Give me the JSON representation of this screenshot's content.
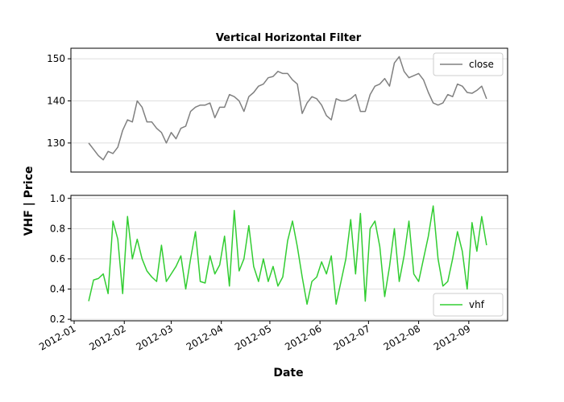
{
  "xlabel": "Date",
  "ylabel": "VHF | Price",
  "chart_data": [
    {
      "type": "line",
      "title": "Vertical Horizontal Filter",
      "legend": "upper right",
      "grid": true,
      "xlim": [
        "2011-12-30",
        "2012-09-25"
      ],
      "ylim": [
        123.1,
        152.5
      ],
      "yticks": [
        130,
        140,
        150
      ],
      "x": [
        "2012-01-10",
        "2012-01-13",
        "2012-01-16",
        "2012-01-19",
        "2012-01-22",
        "2012-01-25",
        "2012-01-28",
        "2012-01-31",
        "2012-02-03",
        "2012-02-06",
        "2012-02-09",
        "2012-02-12",
        "2012-02-15",
        "2012-02-18",
        "2012-02-21",
        "2012-02-24",
        "2012-02-27",
        "2012-03-01",
        "2012-03-04",
        "2012-03-07",
        "2012-03-10",
        "2012-03-13",
        "2012-03-16",
        "2012-03-19",
        "2012-03-22",
        "2012-03-25",
        "2012-03-28",
        "2012-03-31",
        "2012-04-03",
        "2012-04-06",
        "2012-04-09",
        "2012-04-12",
        "2012-04-15",
        "2012-04-18",
        "2012-04-21",
        "2012-04-24",
        "2012-04-27",
        "2012-04-30",
        "2012-05-03",
        "2012-05-06",
        "2012-05-09",
        "2012-05-12",
        "2012-05-15",
        "2012-05-18",
        "2012-05-21",
        "2012-05-24",
        "2012-05-27",
        "2012-05-30",
        "2012-06-02",
        "2012-06-05",
        "2012-06-08",
        "2012-06-11",
        "2012-06-14",
        "2012-06-17",
        "2012-06-20",
        "2012-06-23",
        "2012-06-26",
        "2012-06-29",
        "2012-07-02",
        "2012-07-05",
        "2012-07-08",
        "2012-07-11",
        "2012-07-14",
        "2012-07-17",
        "2012-07-20",
        "2012-07-23",
        "2012-07-26",
        "2012-07-29",
        "2012-08-01",
        "2012-08-04",
        "2012-08-07",
        "2012-08-10",
        "2012-08-13",
        "2012-08-16",
        "2012-08-19",
        "2012-08-22",
        "2012-08-25",
        "2012-08-28",
        "2012-08-31",
        "2012-09-03",
        "2012-09-06",
        "2012-09-09",
        "2012-09-12"
      ],
      "series": [
        {
          "name": "close",
          "color": "#808080",
          "values": [
            130,
            128.5,
            127,
            126,
            128,
            127.5,
            129,
            133,
            135.5,
            135,
            140,
            138.5,
            135,
            135,
            133.5,
            132.5,
            130,
            132.5,
            131,
            133.5,
            134,
            137.5,
            138.5,
            139,
            139,
            139.5,
            136,
            138.5,
            138.5,
            141.5,
            141,
            140,
            137.5,
            141,
            142,
            143.5,
            144,
            145.5,
            145.8,
            147,
            146.5,
            146.5,
            145,
            144,
            137,
            139.5,
            141,
            140.5,
            139,
            136.5,
            135.5,
            140.5,
            140,
            140,
            140.5,
            141.5,
            137.5,
            137.5,
            141.5,
            143.5,
            144,
            145.3,
            143.5,
            149,
            150.5,
            147,
            145.5,
            146,
            146.5,
            145,
            142,
            139.5,
            139,
            139.5,
            141.5,
            141,
            144,
            143.5,
            142,
            141.8,
            142.5,
            143.5,
            140.5
          ]
        }
      ]
    },
    {
      "type": "line",
      "legend": "lower right",
      "grid": true,
      "xlim": [
        "2011-12-30",
        "2012-09-25"
      ],
      "ylim": [
        0.19,
        1.02
      ],
      "yticks": [
        0.2,
        0.4,
        0.6,
        0.8,
        {
          "value": 1,
          "label": "1.0"
        }
      ],
      "xticks": [
        {
          "value": "2012-01-01",
          "label": "2012-01"
        },
        {
          "value": "2012-02-01",
          "label": "2012-02"
        },
        {
          "value": "2012-03-01",
          "label": "2012-03"
        },
        {
          "value": "2012-04-01",
          "label": "2012-04"
        },
        {
          "value": "2012-05-01",
          "label": "2012-05"
        },
        {
          "value": "2012-06-01",
          "label": "2012-06"
        },
        {
          "value": "2012-07-01",
          "label": "2012-07"
        },
        {
          "value": "2012-08-01",
          "label": "2012-08"
        },
        {
          "value": "2012-09-01",
          "label": "2012-09"
        }
      ],
      "x": [
        "2012-01-10",
        "2012-01-13",
        "2012-01-16",
        "2012-01-19",
        "2012-01-22",
        "2012-01-25",
        "2012-01-28",
        "2012-01-31",
        "2012-02-03",
        "2012-02-06",
        "2012-02-09",
        "2012-02-12",
        "2012-02-15",
        "2012-02-18",
        "2012-02-21",
        "2012-02-24",
        "2012-02-27",
        "2012-03-01",
        "2012-03-04",
        "2012-03-07",
        "2012-03-10",
        "2012-03-13",
        "2012-03-16",
        "2012-03-19",
        "2012-03-22",
        "2012-03-25",
        "2012-03-28",
        "2012-03-31",
        "2012-04-03",
        "2012-04-06",
        "2012-04-09",
        "2012-04-12",
        "2012-04-15",
        "2012-04-18",
        "2012-04-21",
        "2012-04-24",
        "2012-04-27",
        "2012-04-30",
        "2012-05-03",
        "2012-05-06",
        "2012-05-09",
        "2012-05-12",
        "2012-05-15",
        "2012-05-18",
        "2012-05-21",
        "2012-05-24",
        "2012-05-27",
        "2012-05-30",
        "2012-06-02",
        "2012-06-05",
        "2012-06-08",
        "2012-06-11",
        "2012-06-14",
        "2012-06-17",
        "2012-06-20",
        "2012-06-23",
        "2012-06-26",
        "2012-06-29",
        "2012-07-02",
        "2012-07-05",
        "2012-07-08",
        "2012-07-11",
        "2012-07-14",
        "2012-07-17",
        "2012-07-20",
        "2012-07-23",
        "2012-07-26",
        "2012-07-29",
        "2012-08-01",
        "2012-08-04",
        "2012-08-07",
        "2012-08-10",
        "2012-08-13",
        "2012-08-16",
        "2012-08-19",
        "2012-08-22",
        "2012-08-25",
        "2012-08-28",
        "2012-08-31",
        "2012-09-03",
        "2012-09-06",
        "2012-09-09",
        "2012-09-12"
      ],
      "series": [
        {
          "name": "vhf",
          "color": "#32cd32",
          "values": [
            0.32,
            0.46,
            0.47,
            0.5,
            0.37,
            0.85,
            0.73,
            0.37,
            0.88,
            0.6,
            0.73,
            0.6,
            0.52,
            0.48,
            0.45,
            0.69,
            0.45,
            0.5,
            0.55,
            0.62,
            0.4,
            0.6,
            0.78,
            0.45,
            0.44,
            0.62,
            0.5,
            0.56,
            0.75,
            0.42,
            0.92,
            0.52,
            0.6,
            0.82,
            0.55,
            0.45,
            0.6,
            0.45,
            0.55,
            0.42,
            0.48,
            0.72,
            0.85,
            0.68,
            0.48,
            0.3,
            0.45,
            0.48,
            0.58,
            0.5,
            0.62,
            0.3,
            0.45,
            0.6,
            0.86,
            0.5,
            0.9,
            0.32,
            0.8,
            0.85,
            0.68,
            0.35,
            0.55,
            0.8,
            0.45,
            0.62,
            0.85,
            0.5,
            0.45,
            0.6,
            0.75,
            0.95,
            0.6,
            0.42,
            0.45,
            0.6,
            0.78,
            0.65,
            0.4,
            0.84,
            0.65,
            0.88,
            0.69
          ]
        }
      ]
    }
  ]
}
